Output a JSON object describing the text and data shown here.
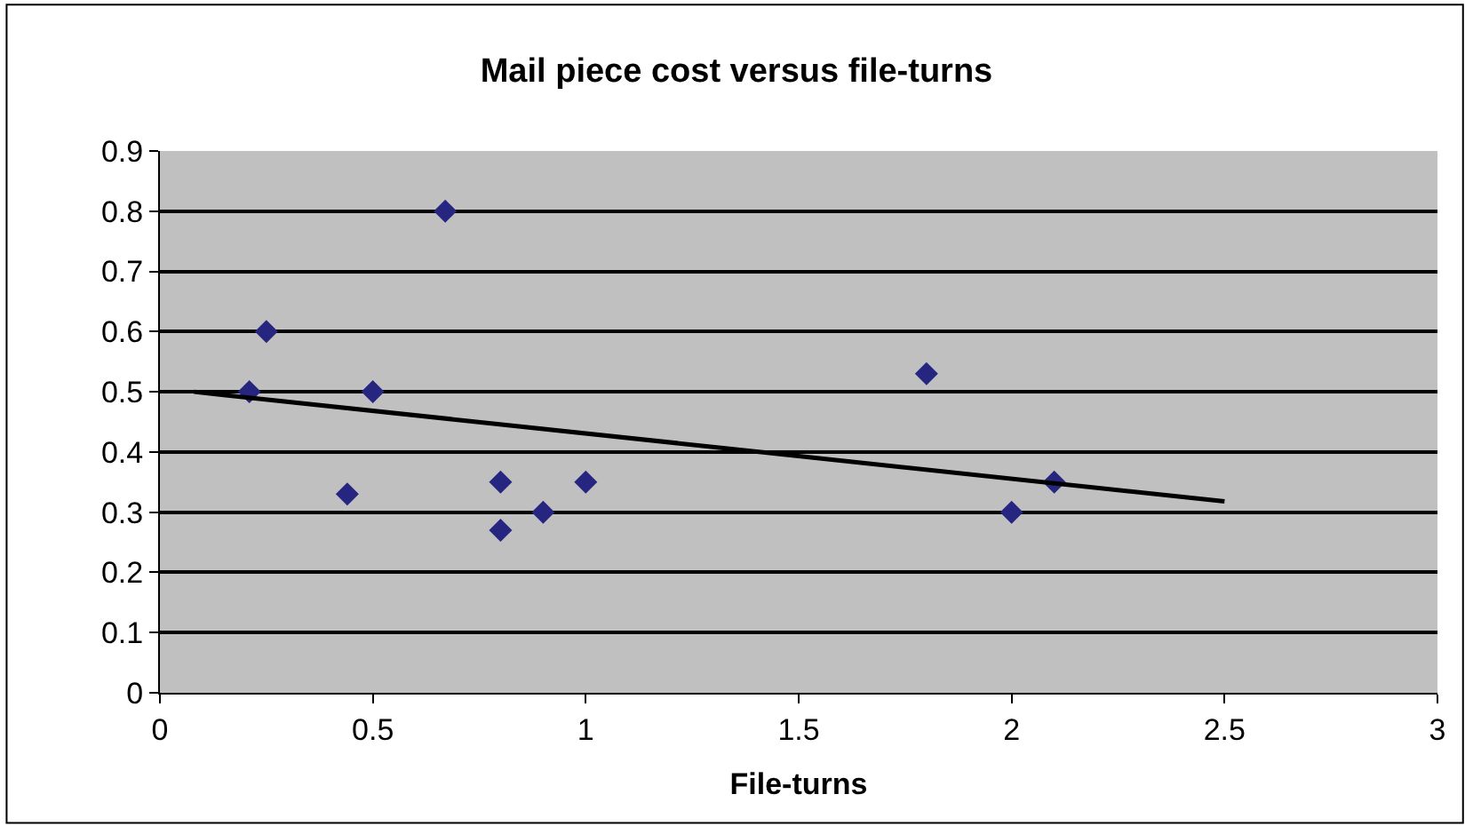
{
  "chart_data": {
    "type": "scatter",
    "title": "Mail piece cost versus file-turns",
    "xlabel": "File-turns",
    "series": [
      {
        "marker": "diamond",
        "color": "#262680",
        "x": [
          0.21,
          0.25,
          0.44,
          0.5,
          0.67,
          0.8,
          0.8,
          0.9,
          1.0,
          1.8,
          2.0,
          2.1
        ],
        "values": [
          0.5,
          0.6,
          0.33,
          0.5,
          0.8,
          0.35,
          0.27,
          0.3,
          0.35,
          0.53,
          0.3,
          0.35
        ]
      },
      {
        "type": "line",
        "color": "#000000",
        "x": [
          0.08,
          2.5
        ],
        "values": [
          0.5,
          0.318
        ]
      }
    ],
    "xlim": [
      0,
      3
    ],
    "xticks": [
      0,
      0.5,
      1,
      1.5,
      2,
      2.5,
      3
    ],
    "ylim": [
      0,
      0.9
    ],
    "yticks": [
      0,
      0.1,
      0.2,
      0.3,
      0.4,
      0.5,
      0.6,
      0.7,
      0.8,
      0.9
    ],
    "grid": "y"
  }
}
